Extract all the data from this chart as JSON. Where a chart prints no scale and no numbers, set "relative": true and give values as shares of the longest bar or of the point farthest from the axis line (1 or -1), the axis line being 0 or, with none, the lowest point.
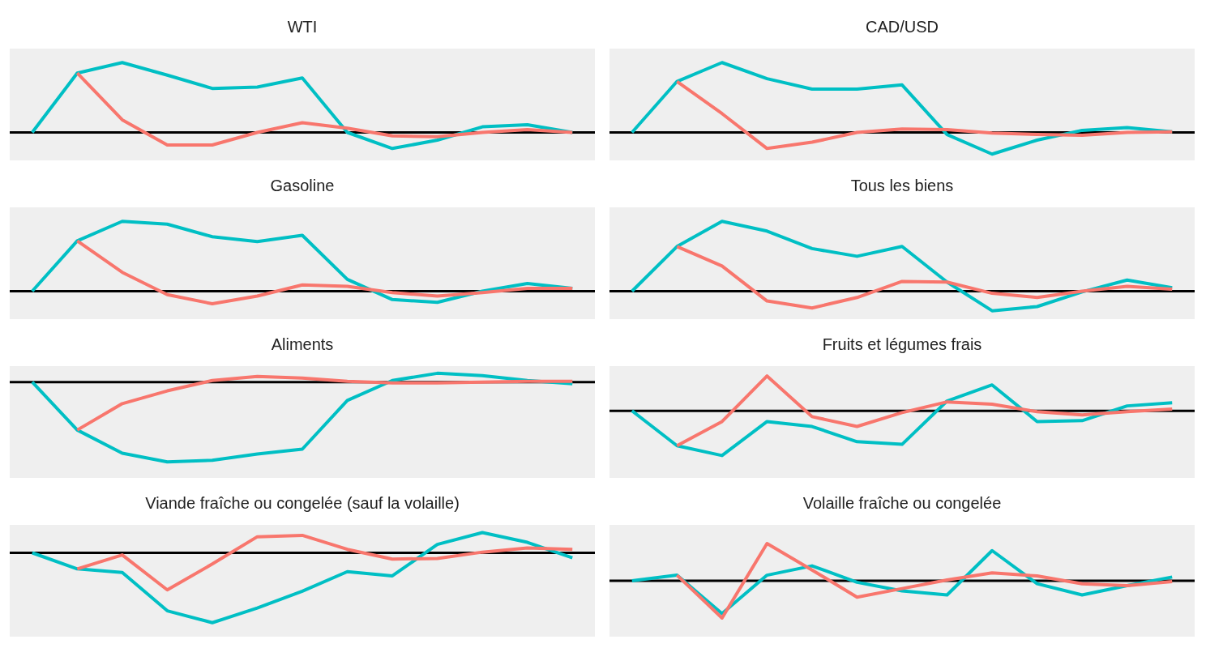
{
  "chart_data": [
    {
      "type": "line",
      "title": "WTI",
      "relative": true,
      "categories": [
        null,
        null,
        null,
        null,
        null,
        null,
        null,
        null,
        null,
        null,
        null,
        null,
        null
      ],
      "series": [
        {
          "color": "#f8766d",
          "values": [
            null,
            0.85,
            0.18,
            -0.18,
            -0.18,
            0,
            0.14,
            0.06,
            -0.05,
            -0.06,
            0,
            0.04,
            0
          ]
        },
        {
          "color": "#00bfc4",
          "values": [
            0,
            0.85,
            1,
            0.82,
            0.63,
            0.65,
            0.78,
            0,
            -0.23,
            -0.11,
            0.08,
            0.11,
            0
          ]
        }
      ]
    },
    {
      "type": "line",
      "title": "CAD/USD",
      "relative": true,
      "categories": [
        null,
        null,
        null,
        null,
        null,
        null,
        null,
        null,
        null,
        null,
        null,
        null,
        null
      ],
      "series": [
        {
          "color": "#f8766d",
          "values": [
            null,
            0.73,
            0.27,
            -0.23,
            -0.14,
            0,
            0.05,
            0.04,
            -0.01,
            -0.03,
            -0.04,
            0,
            0.01
          ]
        },
        {
          "color": "#00bfc4",
          "values": [
            0,
            0.73,
            1,
            0.77,
            0.62,
            0.62,
            0.68,
            -0.03,
            -0.31,
            -0.11,
            0.03,
            0.07,
            0.01
          ]
        }
      ]
    },
    {
      "type": "line",
      "title": "Gasoline",
      "relative": true,
      "categories": [
        null,
        null,
        null,
        null,
        null,
        null,
        null,
        null,
        null,
        null,
        null,
        null,
        null
      ],
      "series": [
        {
          "color": "#f8766d",
          "values": [
            null,
            0.72,
            0.27,
            -0.05,
            -0.18,
            -0.07,
            0.09,
            0.07,
            -0.02,
            -0.07,
            -0.02,
            0.04,
            0.04
          ]
        },
        {
          "color": "#00bfc4",
          "values": [
            0,
            0.72,
            1,
            0.96,
            0.78,
            0.71,
            0.8,
            0.17,
            -0.12,
            -0.16,
            0,
            0.11,
            0.04
          ]
        }
      ]
    },
    {
      "type": "line",
      "title": "Tous les biens",
      "relative": true,
      "categories": [
        null,
        null,
        null,
        null,
        null,
        null,
        null,
        null,
        null,
        null,
        null,
        null,
        null
      ],
      "series": [
        {
          "color": "#f8766d",
          "values": [
            null,
            0.64,
            0.36,
            -0.14,
            -0.24,
            -0.09,
            0.14,
            0.13,
            -0.03,
            -0.09,
            0,
            0.07,
            0.03
          ]
        },
        {
          "color": "#00bfc4",
          "values": [
            0,
            0.64,
            1,
            0.86,
            0.61,
            0.5,
            0.64,
            0.13,
            -0.28,
            -0.22,
            -0.01,
            0.16,
            0.05
          ]
        }
      ]
    },
    {
      "type": "line",
      "title": "Aliments",
      "relative": true,
      "categories": [
        null,
        null,
        null,
        null,
        null,
        null,
        null,
        null,
        null,
        null,
        null,
        null,
        null
      ],
      "series": [
        {
          "color": "#f8766d",
          "values": [
            null,
            -0.6,
            -0.27,
            -0.11,
            0.02,
            0.07,
            0.05,
            0.01,
            -0.01,
            -0.01,
            0,
            0.01,
            0.01
          ]
        },
        {
          "color": "#00bfc4",
          "values": [
            0,
            -0.6,
            -0.89,
            -1,
            -0.98,
            -0.9,
            -0.84,
            -0.23,
            0.02,
            0.11,
            0.08,
            0.02,
            -0.02
          ]
        }
      ]
    },
    {
      "type": "line",
      "title": "Fruits et légumes frais",
      "relative": true,
      "categories": [
        null,
        null,
        null,
        null,
        null,
        null,
        null,
        null,
        null,
        null,
        null,
        null,
        null
      ],
      "series": [
        {
          "color": "#f8766d",
          "values": [
            null,
            -0.78,
            -0.24,
            0.78,
            -0.13,
            -0.35,
            -0.04,
            0.2,
            0.15,
            -0.02,
            -0.09,
            -0.02,
            0.04
          ]
        },
        {
          "color": "#00bfc4",
          "values": [
            0,
            -0.78,
            -1,
            -0.24,
            -0.35,
            -0.69,
            -0.75,
            0.22,
            0.58,
            -0.24,
            -0.22,
            0.11,
            0.18
          ]
        }
      ]
    },
    {
      "type": "line",
      "title": "Viande fraîche ou congelée (sauf la volaille)",
      "relative": true,
      "categories": [
        null,
        null,
        null,
        null,
        null,
        null,
        null,
        null,
        null,
        null,
        null,
        null,
        null
      ],
      "series": [
        {
          "color": "#f8766d",
          "values": [
            null,
            -0.23,
            -0.03,
            -0.53,
            -0.16,
            0.23,
            0.25,
            0.05,
            -0.09,
            -0.08,
            0.01,
            0.07,
            0.05
          ]
        },
        {
          "color": "#00bfc4",
          "values": [
            0,
            -0.23,
            -0.28,
            -0.83,
            -1,
            -0.79,
            -0.55,
            -0.27,
            -0.33,
            0.12,
            0.29,
            0.15,
            -0.07
          ]
        }
      ]
    },
    {
      "type": "line",
      "title": "Volaille fraîche ou congelée",
      "relative": true,
      "categories": [
        null,
        null,
        null,
        null,
        null,
        null,
        null,
        null,
        null,
        null,
        null,
        null,
        null
      ],
      "series": [
        {
          "color": "#f8766d",
          "values": [
            null,
            0.15,
            -1,
            1,
            0.29,
            -0.44,
            -0.21,
            0.02,
            0.21,
            0.13,
            -0.08,
            -0.13,
            -0.02
          ]
        },
        {
          "color": "#00bfc4",
          "values": [
            0,
            0.15,
            -0.88,
            0.15,
            0.4,
            -0.04,
            -0.27,
            -0.38,
            0.81,
            -0.08,
            -0.38,
            -0.13,
            0.1
          ]
        }
      ]
    }
  ]
}
